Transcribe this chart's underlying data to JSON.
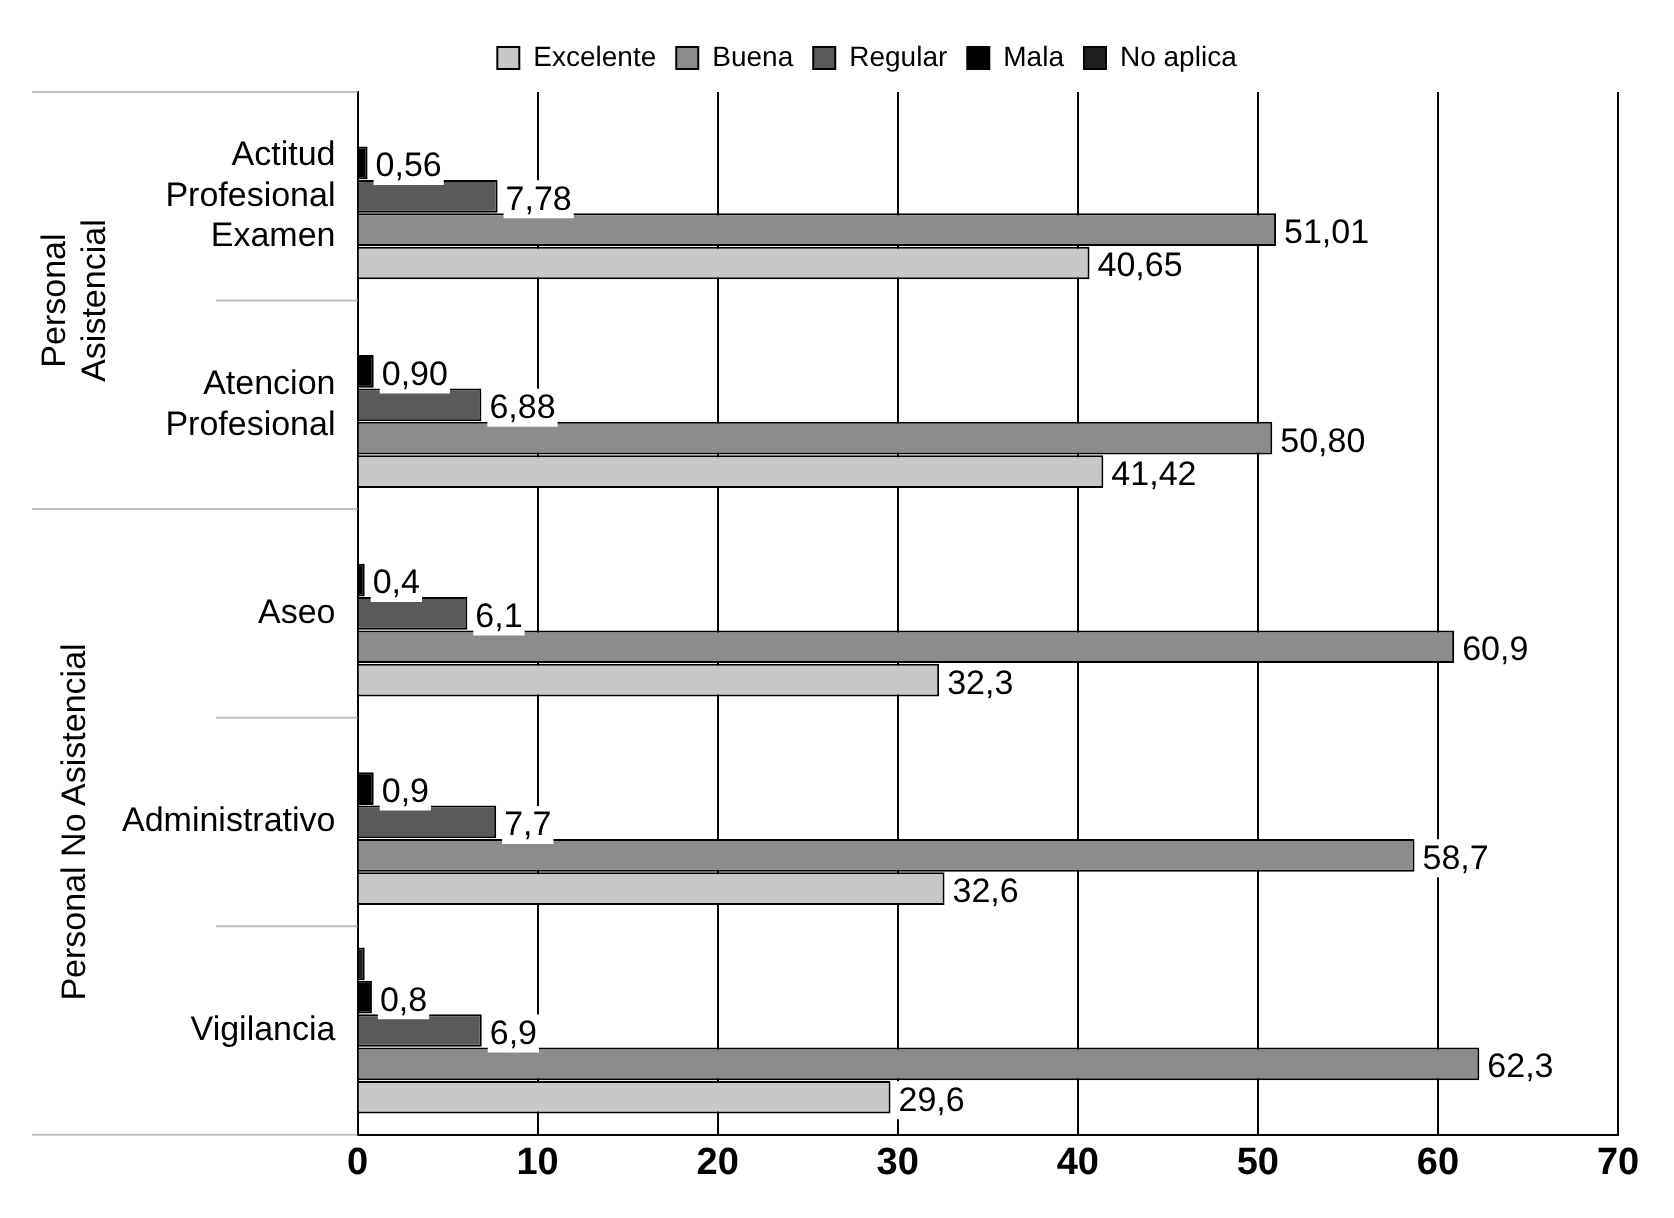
{
  "chart_data": {
    "type": "bar",
    "orientation": "horizontal",
    "categories": [
      "Actitud Profesional Examen",
      "Atencion Profesional",
      "Aseo",
      "Administrativo",
      "Vigilancia"
    ],
    "series": [
      {
        "name": "Excelente",
        "color": "#c8c8c8",
        "values": [
          40.65,
          41.42,
          32.3,
          32.6,
          29.6
        ],
        "value_labels": [
          "40,65",
          "41,42",
          "32,3",
          "32,6",
          "29,6"
        ]
      },
      {
        "name": "Buena",
        "color": "#8c8c8c",
        "values": [
          51.01,
          50.8,
          60.9,
          58.7,
          62.3
        ],
        "value_labels": [
          "51,01",
          "50,80",
          "60,9",
          "58,7",
          "62,3"
        ]
      },
      {
        "name": "Regular",
        "color": "#5a5a5a",
        "values": [
          7.78,
          6.88,
          6.1,
          7.7,
          6.9
        ],
        "value_labels": [
          "7,78",
          "6,88",
          "6,1",
          "7,7",
          "6,9"
        ]
      },
      {
        "name": "Mala",
        "color": "#000000",
        "values": [
          0.56,
          0.9,
          0.4,
          0.9,
          0.8
        ],
        "value_labels": [
          "0,56",
          "0,90",
          "0,4",
          "0,9",
          "0,8"
        ]
      },
      {
        "name": "No aplica",
        "color": "#1e1e1e",
        "values": [
          null,
          null,
          null,
          null,
          0.4
        ],
        "value_labels": [
          null,
          null,
          null,
          null,
          null
        ]
      }
    ],
    "xlim": [
      0,
      70
    ],
    "xticks": [
      0,
      10,
      20,
      30,
      40,
      50,
      60,
      70
    ],
    "grid": "x",
    "legend": "top",
    "annotations": [
      "Personal Asistencial",
      "Personal No Asistencial"
    ]
  }
}
